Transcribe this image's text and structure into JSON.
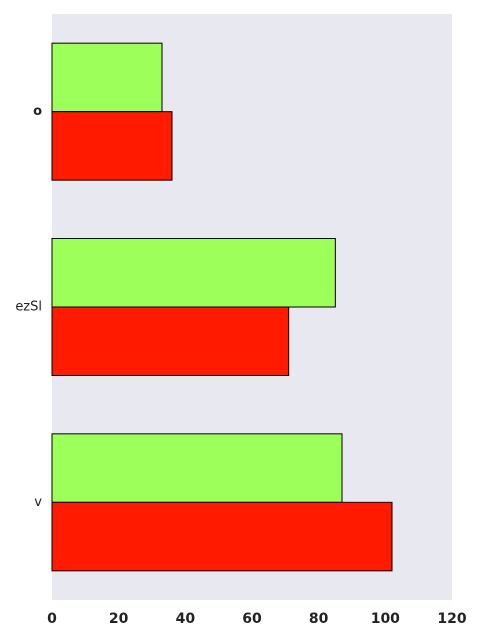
{
  "chart_data": {
    "type": "bar",
    "orientation": "horizontal",
    "categories": [
      "o",
      "ezSl",
      "v"
    ],
    "series": [
      {
        "values": [
          33,
          85,
          87
        ],
        "color": "#9dff5a"
      },
      {
        "values": [
          36,
          71,
          102
        ],
        "color": "#ff1a00"
      }
    ],
    "xlim": [
      0,
      120
    ],
    "xticks": [
      0,
      20,
      40,
      60,
      80,
      100,
      120
    ],
    "grid": false,
    "background": "#e8e8f0",
    "bar_edge_color": "#000000"
  }
}
